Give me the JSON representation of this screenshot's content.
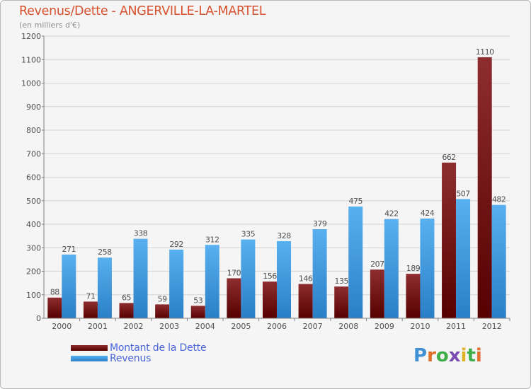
{
  "chart_data": {
    "type": "bar",
    "title": "Revenus/Dette - ANGERVILLE-LA-MARTEL",
    "subtitle": "(en milliers d'€)",
    "categories": [
      "2000",
      "2001",
      "2002",
      "2003",
      "2004",
      "2005",
      "2006",
      "2007",
      "2008",
      "2009",
      "2010",
      "2011",
      "2012"
    ],
    "series": [
      {
        "name": "Montant de la Dette",
        "color": "#7a1416",
        "values": [
          88,
          71,
          65,
          59,
          53,
          170,
          156,
          146,
          135,
          207,
          189,
          662,
          1110
        ]
      },
      {
        "name": "Revenus",
        "color": "#3e9be0",
        "values": [
          271,
          258,
          338,
          292,
          312,
          335,
          328,
          379,
          475,
          422,
          424,
          507,
          482
        ]
      }
    ],
    "ylim": [
      0,
      1200
    ],
    "yticks": [
      0,
      100,
      200,
      300,
      400,
      500,
      600,
      700,
      800,
      900,
      1000,
      1100,
      1200
    ],
    "grid": true,
    "legend_position": "bottom-left"
  },
  "logo": {
    "letters": [
      "P",
      "r",
      "o",
      "x",
      "i",
      "t",
      "i"
    ],
    "colors": [
      "#3f8fd4",
      "#e0702a",
      "#3fae49",
      "#7a4bb0",
      "#e0b12a",
      "#3fae49",
      "#e0702a"
    ]
  }
}
